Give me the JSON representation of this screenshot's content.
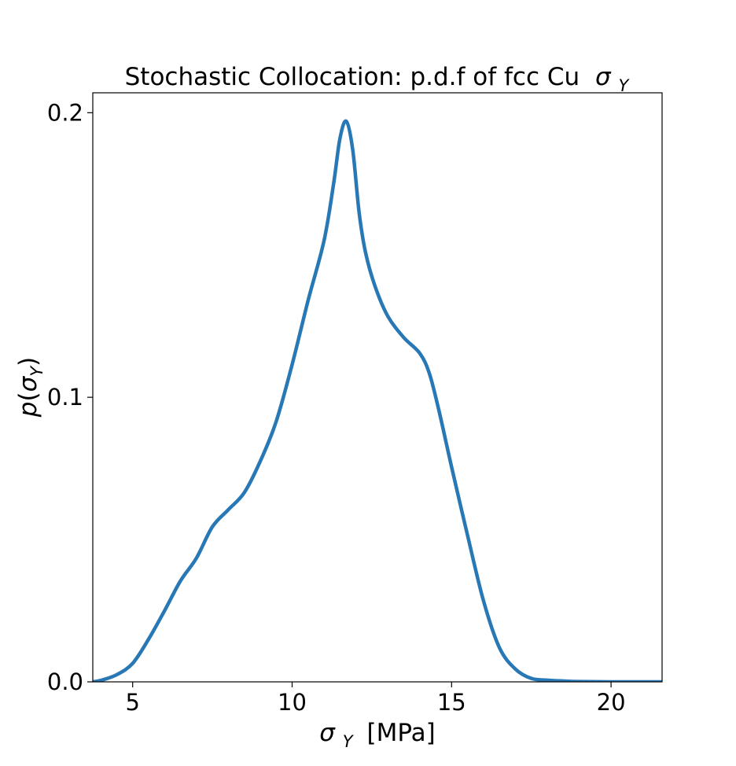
{
  "chart_data": {
    "type": "line",
    "title": "Stochastic Collocation: p.d.f of fcc Cu",
    "title_symbol": "σ",
    "title_symbol_sub": "Y",
    "xlabel_symbol": "σ",
    "xlabel_symbol_sub": "Y",
    "xlabel_unit": "[MPa]",
    "ylabel_p": "p",
    "ylabel_open": "(",
    "ylabel_symbol": "σ",
    "ylabel_symbol_sub": "Y",
    "ylabel_close": ")",
    "xlim": [
      3.75,
      21.6
    ],
    "ylim": [
      0.0,
      0.207
    ],
    "xticks": [
      5,
      10,
      15,
      20
    ],
    "xtick_labels": [
      "5",
      "10",
      "15",
      "20"
    ],
    "yticks": [
      0.0,
      0.1,
      0.2
    ],
    "ytick_labels": [
      "0.0",
      "0.1",
      "0.2"
    ],
    "grid": false,
    "color": "#2878b5",
    "series": [
      {
        "x": [
          3.75,
          4.0,
          4.5,
          5.0,
          5.5,
          6.0,
          6.5,
          7.0,
          7.5,
          8.0,
          8.5,
          9.0,
          9.5,
          10.0,
          10.5,
          11.0,
          11.3,
          11.5,
          11.7,
          11.9,
          12.1,
          12.3,
          12.6,
          13.0,
          13.5,
          14.0,
          14.3,
          14.6,
          15.0,
          15.5,
          16.0,
          16.5,
          17.0,
          17.5,
          18.0,
          18.5,
          19.0,
          20.0,
          21.6
        ],
        "y": [
          0.0,
          0.0005,
          0.0025,
          0.0065,
          0.015,
          0.025,
          0.0355,
          0.0435,
          0.0545,
          0.0605,
          0.0665,
          0.0775,
          0.0915,
          0.1115,
          0.134,
          0.155,
          0.175,
          0.191,
          0.197,
          0.187,
          0.165,
          0.151,
          0.139,
          0.1285,
          0.121,
          0.1155,
          0.1085,
          0.0955,
          0.0755,
          0.0515,
          0.0285,
          0.012,
          0.0045,
          0.0012,
          0.0006,
          0.0003,
          0.0001,
          0.0,
          0.0
        ]
      }
    ]
  }
}
